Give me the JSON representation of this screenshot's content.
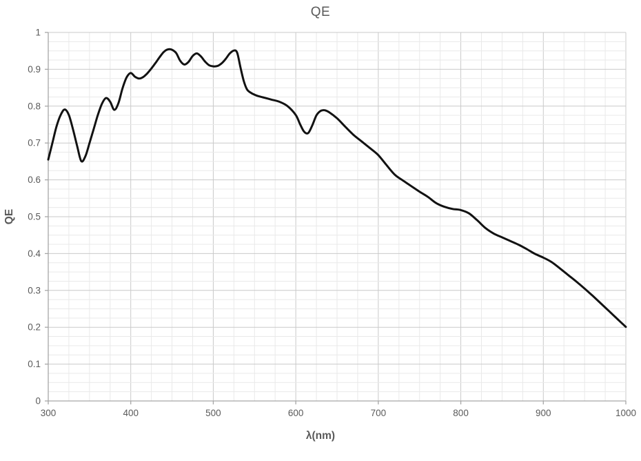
{
  "chart": {
    "title": "QE",
    "x_axis": {
      "label": "λ(nm)",
      "min": 300,
      "max": 1000,
      "major_tick_step": 100,
      "minor_tick_step": 25,
      "ticks": [
        {
          "v": 300,
          "label": "300"
        },
        {
          "v": 400,
          "label": "400"
        },
        {
          "v": 500,
          "label": "500"
        },
        {
          "v": 600,
          "label": "600"
        },
        {
          "v": 700,
          "label": "700"
        },
        {
          "v": 800,
          "label": "800"
        },
        {
          "v": 900,
          "label": "900"
        },
        {
          "v": 1000,
          "label": "1000"
        }
      ]
    },
    "y_axis": {
      "label": "QE",
      "min": 0,
      "max": 1,
      "major_tick_step": 0.1,
      "minor_tick_step": 0.025,
      "ticks": [
        {
          "v": 1,
          "label": "1"
        },
        {
          "v": 0.9,
          "label": "0.9"
        },
        {
          "v": 0.8,
          "label": "0.8"
        },
        {
          "v": 0.7,
          "label": "0.7"
        },
        {
          "v": 0.6,
          "label": "0.6"
        },
        {
          "v": 0.5,
          "label": "0.5"
        },
        {
          "v": 0.4,
          "label": "0.4"
        },
        {
          "v": 0.3,
          "label": "0.3"
        },
        {
          "v": 0.2,
          "label": "0.2"
        },
        {
          "v": 0.1,
          "label": "0.1"
        },
        {
          "v": 0,
          "label": "0"
        }
      ]
    },
    "colors": {
      "curve": "#121212",
      "major_grid": "#c9c9c9",
      "minor_grid": "#e9e9e9",
      "axis": "#a6a6a6",
      "text": "#595959",
      "background": "#ffffff"
    }
  },
  "chart_data": {
    "type": "line",
    "title": "QE",
    "xlabel": "λ(nm)",
    "ylabel": "QE",
    "xlim": [
      300,
      1000
    ],
    "ylim": [
      0,
      1
    ],
    "grid": {
      "major": true,
      "minor": true
    },
    "legend": false,
    "series": [
      {
        "name": "QE",
        "color": "#121212",
        "points": [
          [
            300,
            0.655
          ],
          [
            305,
            0.7
          ],
          [
            310,
            0.745
          ],
          [
            315,
            0.776
          ],
          [
            320,
            0.791
          ],
          [
            325,
            0.776
          ],
          [
            330,
            0.737
          ],
          [
            335,
            0.692
          ],
          [
            340,
            0.651
          ],
          [
            345,
            0.664
          ],
          [
            350,
            0.7
          ],
          [
            355,
            0.737
          ],
          [
            360,
            0.775
          ],
          [
            365,
            0.806
          ],
          [
            370,
            0.822
          ],
          [
            375,
            0.812
          ],
          [
            380,
            0.79
          ],
          [
            385,
            0.808
          ],
          [
            390,
            0.848
          ],
          [
            395,
            0.878
          ],
          [
            400,
            0.89
          ],
          [
            405,
            0.88
          ],
          [
            410,
            0.875
          ],
          [
            415,
            0.879
          ],
          [
            420,
            0.889
          ],
          [
            425,
            0.902
          ],
          [
            430,
            0.917
          ],
          [
            435,
            0.933
          ],
          [
            440,
            0.947
          ],
          [
            445,
            0.954
          ],
          [
            450,
            0.953
          ],
          [
            455,
            0.944
          ],
          [
            460,
            0.923
          ],
          [
            465,
            0.913
          ],
          [
            470,
            0.92
          ],
          [
            475,
            0.936
          ],
          [
            480,
            0.943
          ],
          [
            485,
            0.935
          ],
          [
            490,
            0.921
          ],
          [
            495,
            0.911
          ],
          [
            500,
            0.908
          ],
          [
            505,
            0.909
          ],
          [
            510,
            0.916
          ],
          [
            515,
            0.928
          ],
          [
            520,
            0.943
          ],
          [
            525,
            0.951
          ],
          [
            529,
            0.945
          ],
          [
            533,
            0.905
          ],
          [
            537,
            0.868
          ],
          [
            541,
            0.845
          ],
          [
            545,
            0.837
          ],
          [
            550,
            0.831
          ],
          [
            555,
            0.827
          ],
          [
            560,
            0.824
          ],
          [
            570,
            0.818
          ],
          [
            580,
            0.812
          ],
          [
            590,
            0.8
          ],
          [
            600,
            0.776
          ],
          [
            605,
            0.752
          ],
          [
            610,
            0.731
          ],
          [
            615,
            0.727
          ],
          [
            620,
            0.748
          ],
          [
            625,
            0.775
          ],
          [
            630,
            0.787
          ],
          [
            635,
            0.789
          ],
          [
            640,
            0.784
          ],
          [
            650,
            0.767
          ],
          [
            660,
            0.744
          ],
          [
            670,
            0.722
          ],
          [
            680,
            0.704
          ],
          [
            690,
            0.686
          ],
          [
            700,
            0.667
          ],
          [
            710,
            0.64
          ],
          [
            720,
            0.614
          ],
          [
            730,
            0.598
          ],
          [
            740,
            0.583
          ],
          [
            750,
            0.568
          ],
          [
            760,
            0.554
          ],
          [
            770,
            0.537
          ],
          [
            780,
            0.527
          ],
          [
            790,
            0.521
          ],
          [
            800,
            0.518
          ],
          [
            810,
            0.509
          ],
          [
            820,
            0.49
          ],
          [
            830,
            0.469
          ],
          [
            840,
            0.454
          ],
          [
            850,
            0.444
          ],
          [
            860,
            0.434
          ],
          [
            870,
            0.424
          ],
          [
            880,
            0.412
          ],
          [
            890,
            0.399
          ],
          [
            900,
            0.389
          ],
          [
            910,
            0.377
          ],
          [
            920,
            0.36
          ],
          [
            930,
            0.342
          ],
          [
            940,
            0.324
          ],
          [
            950,
            0.305
          ],
          [
            960,
            0.285
          ],
          [
            970,
            0.264
          ],
          [
            980,
            0.243
          ],
          [
            990,
            0.222
          ],
          [
            1000,
            0.201
          ]
        ]
      }
    ]
  }
}
